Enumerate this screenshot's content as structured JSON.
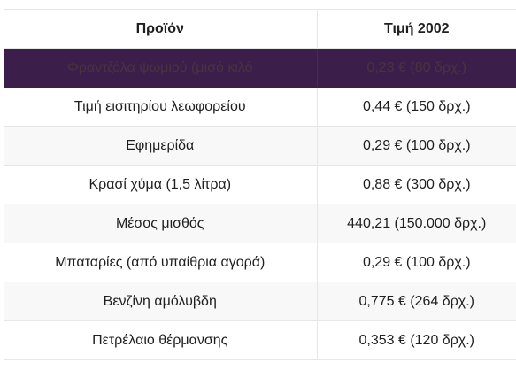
{
  "table": {
    "headers": [
      "Προϊόν",
      "Τιμή 2002"
    ],
    "highlight_color": "#3c1e4a",
    "rows": [
      [
        "Φραντζόλα ψωμιού (μισό κιλό",
        "0,23 € (80 δρχ.)"
      ],
      [
        "Τιμή εισιτηρίου λεωφορείου",
        "0,44 € (150 δρχ.)"
      ],
      [
        "Εφημερίδα",
        "0,29 € (100 δρχ.)"
      ],
      [
        "Κρασί χύμα (1,5 λίτρα)",
        "0,88 € (300 δρχ.)"
      ],
      [
        "Μέσος μισθός",
        "440,21 (150.000 δρχ.)"
      ],
      [
        "Μπαταρίες (από υπαίθρια αγορά)",
        "0,29 € (100 δρχ.)"
      ],
      [
        "Βενζίνη αμόλυβδη",
        "0,775 € (264 δρχ.)"
      ],
      [
        "Πετρέλαιο θέρμανσης",
        "0,353 € (120 δρχ.)"
      ]
    ]
  }
}
